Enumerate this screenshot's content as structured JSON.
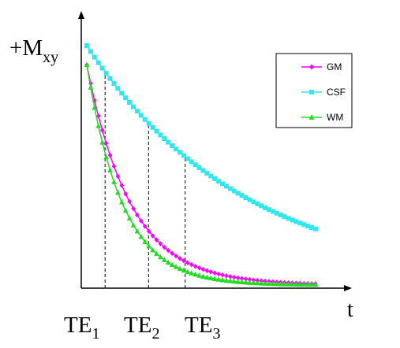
{
  "chart_data": {
    "type": "line",
    "ylabel": {
      "main": "+M",
      "sub": "xy"
    },
    "xlabel": "t",
    "te_markers": [
      {
        "base": "TE",
        "sub": "1",
        "t": 0.08
      },
      {
        "base": "TE",
        "sub": "2",
        "t": 0.27
      },
      {
        "base": "TE",
        "sub": "3",
        "t": 0.43
      }
    ],
    "xlim": [
      0,
      1
    ],
    "ylim": [
      0,
      1
    ],
    "n_points": 60,
    "grid": false,
    "legend_position": "top-right",
    "series": [
      {
        "name": "GM",
        "color": "#ff00ff",
        "marker": "diamond",
        "y0": 0.92,
        "decay_rate": 5.2,
        "offset": 0.0
      },
      {
        "name": "CSF",
        "color": "#33e6ee",
        "marker": "square",
        "y0": 1.0,
        "decay_rate": 1.45,
        "offset": 0.0
      },
      {
        "name": "WM",
        "color": "#22dd22",
        "marker": "triangle",
        "y0": 0.92,
        "decay_rate": 6.4,
        "offset": 0.0
      }
    ]
  }
}
